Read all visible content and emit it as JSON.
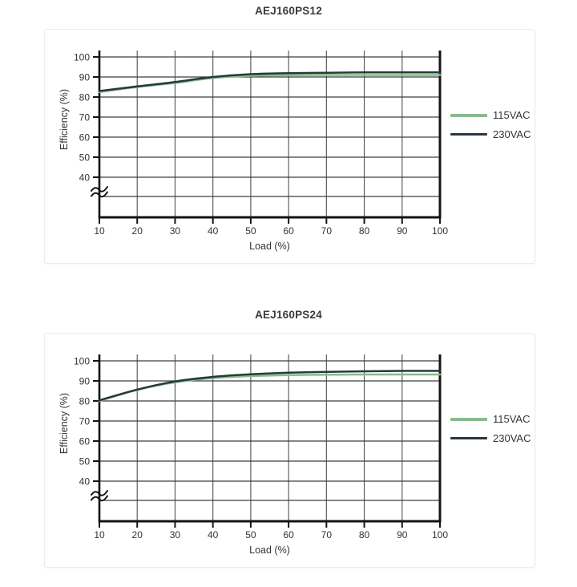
{
  "chart_data": [
    {
      "type": "line",
      "title": "AEJ160PS12",
      "xlabel": "Load (%)",
      "ylabel": "Efficiency (%)",
      "x": [
        10,
        20,
        30,
        40,
        50,
        60,
        70,
        80,
        90,
        100
      ],
      "xticks": [
        10,
        20,
        30,
        40,
        50,
        60,
        70,
        80,
        90,
        100
      ],
      "yticks": [
        100,
        90,
        80,
        70,
        60,
        50,
        40
      ],
      "ylim": [
        40,
        100
      ],
      "y_axis_break": true,
      "grid": true,
      "legend_position": "right",
      "series": [
        {
          "name": "115VAC",
          "color": "#7fc183",
          "values": [
            82.5,
            85.0,
            87.0,
            89.5,
            90.6,
            90.9,
            91.0,
            91.0,
            91.0,
            91.0
          ]
        },
        {
          "name": "230VAC",
          "color": "#2a3642",
          "values": [
            83.0,
            85.3,
            87.5,
            90.0,
            91.4,
            91.9,
            92.1,
            92.3,
            92.3,
            92.3
          ]
        }
      ]
    },
    {
      "type": "line",
      "title": "AEJ160PS24",
      "xlabel": "Load (%)",
      "ylabel": "Efficiency (%)",
      "x": [
        10,
        20,
        30,
        40,
        50,
        60,
        70,
        80,
        90,
        100
      ],
      "xticks": [
        10,
        20,
        30,
        40,
        50,
        60,
        70,
        80,
        90,
        100
      ],
      "yticks": [
        100,
        90,
        80,
        70,
        60,
        50,
        40
      ],
      "ylim": [
        40,
        100
      ],
      "y_axis_break": true,
      "grid": true,
      "legend_position": "right",
      "series": [
        {
          "name": "115VAC",
          "color": "#7fc183",
          "values": [
            80.0,
            85.5,
            89.3,
            91.4,
            92.4,
            92.9,
            93.1,
            93.2,
            93.2,
            93.2
          ]
        },
        {
          "name": "230VAC",
          "color": "#2a3642",
          "values": [
            80.3,
            85.7,
            89.7,
            92.0,
            93.3,
            94.1,
            94.5,
            94.8,
            95.0,
            95.0
          ]
        }
      ]
    }
  ],
  "colors": {
    "series_115vac": "#7fc183",
    "series_230vac": "#2a3642",
    "axis": "#141414",
    "horizontal_grid": "#3d3d3d",
    "vertical_grid": "#5e5e5e",
    "card_border": "#ececec"
  }
}
